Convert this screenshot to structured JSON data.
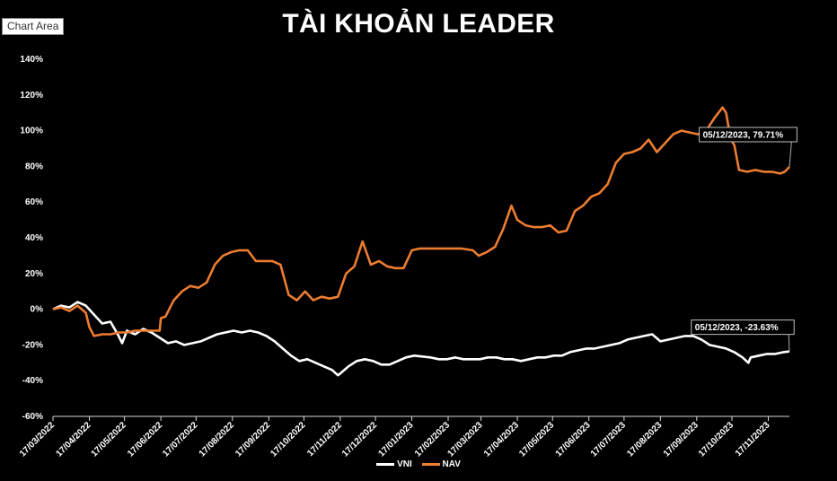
{
  "ui": {
    "chart_area_label": "Chart Area"
  },
  "chart_data": {
    "type": "line",
    "title": "TÀI KHOẢN LEADER",
    "xlabel": "",
    "ylabel": "",
    "ylim": [
      -60,
      140
    ],
    "ytick_step": 20,
    "y_unit": "%",
    "grid": false,
    "legend_position": "bottom",
    "x_tick_labels": [
      "17/03/2022",
      "17/04/2022",
      "17/05/2022",
      "17/06/2022",
      "17/07/2022",
      "17/08/2022",
      "17/09/2022",
      "17/10/2022",
      "17/11/2022",
      "17/12/2022",
      "17/01/2023",
      "17/02/2023",
      "17/03/2023",
      "17/04/2023",
      "17/05/2023",
      "17/06/2023",
      "17/07/2023",
      "17/08/2023",
      "17/09/2023",
      "17/10/2023",
      "17/11/2023"
    ],
    "x_range": [
      "17/03/2022",
      "05/12/2023"
    ],
    "series": [
      {
        "name": "VNI",
        "color": "#ffffff",
        "points": [
          [
            "17/03/2022",
            0
          ],
          [
            "24/03/2022",
            2
          ],
          [
            "31/03/2022",
            1
          ],
          [
            "07/04/2022",
            4
          ],
          [
            "14/04/2022",
            2
          ],
          [
            "21/04/2022",
            -3
          ],
          [
            "28/04/2022",
            -8
          ],
          [
            "05/05/2022",
            -7
          ],
          [
            "12/05/2022",
            -15
          ],
          [
            "15/05/2022",
            -19
          ],
          [
            "19/05/2022",
            -12
          ],
          [
            "26/05/2022",
            -14
          ],
          [
            "02/06/2022",
            -11
          ],
          [
            "09/06/2022",
            -13
          ],
          [
            "16/06/2022",
            -16
          ],
          [
            "23/06/2022",
            -19
          ],
          [
            "30/06/2022",
            -18
          ],
          [
            "07/07/2022",
            -20
          ],
          [
            "14/07/2022",
            -19
          ],
          [
            "21/07/2022",
            -18
          ],
          [
            "28/07/2022",
            -16
          ],
          [
            "04/08/2022",
            -14
          ],
          [
            "11/08/2022",
            -13
          ],
          [
            "18/08/2022",
            -12
          ],
          [
            "25/08/2022",
            -13
          ],
          [
            "01/09/2022",
            -12
          ],
          [
            "08/09/2022",
            -13
          ],
          [
            "15/09/2022",
            -15
          ],
          [
            "22/09/2022",
            -18
          ],
          [
            "29/09/2022",
            -22
          ],
          [
            "06/10/2022",
            -26
          ],
          [
            "13/10/2022",
            -29
          ],
          [
            "20/10/2022",
            -28
          ],
          [
            "27/10/2022",
            -30
          ],
          [
            "03/11/2022",
            -32
          ],
          [
            "10/11/2022",
            -34
          ],
          [
            "15/11/2022",
            -37
          ],
          [
            "17/11/2022",
            -36
          ],
          [
            "24/11/2022",
            -32
          ],
          [
            "01/12/2022",
            -29
          ],
          [
            "08/12/2022",
            -28
          ],
          [
            "15/12/2022",
            -29
          ],
          [
            "22/12/2022",
            -31
          ],
          [
            "29/12/2022",
            -31
          ],
          [
            "05/01/2023",
            -29
          ],
          [
            "12/01/2023",
            -27
          ],
          [
            "19/01/2023",
            -26
          ],
          [
            "02/02/2023",
            -27
          ],
          [
            "09/02/2023",
            -28
          ],
          [
            "16/02/2023",
            -28
          ],
          [
            "23/02/2023",
            -27
          ],
          [
            "02/03/2023",
            -28
          ],
          [
            "09/03/2023",
            -28
          ],
          [
            "16/03/2023",
            -28
          ],
          [
            "23/03/2023",
            -27
          ],
          [
            "30/03/2023",
            -27
          ],
          [
            "06/04/2023",
            -28
          ],
          [
            "13/04/2023",
            -28
          ],
          [
            "20/04/2023",
            -29
          ],
          [
            "27/04/2023",
            -28
          ],
          [
            "04/05/2023",
            -27
          ],
          [
            "11/05/2023",
            -27
          ],
          [
            "18/05/2023",
            -26
          ],
          [
            "25/05/2023",
            -26
          ],
          [
            "01/06/2023",
            -24
          ],
          [
            "08/06/2023",
            -23
          ],
          [
            "15/06/2023",
            -22
          ],
          [
            "22/06/2023",
            -22
          ],
          [
            "29/06/2023",
            -21
          ],
          [
            "06/07/2023",
            -20
          ],
          [
            "13/07/2023",
            -19
          ],
          [
            "20/07/2023",
            -17
          ],
          [
            "27/07/2023",
            -16
          ],
          [
            "03/08/2023",
            -15
          ],
          [
            "10/08/2023",
            -14
          ],
          [
            "17/08/2023",
            -18
          ],
          [
            "24/08/2023",
            -17
          ],
          [
            "31/08/2023",
            -16
          ],
          [
            "07/09/2023",
            -15
          ],
          [
            "14/09/2023",
            -15
          ],
          [
            "21/09/2023",
            -17
          ],
          [
            "28/09/2023",
            -20
          ],
          [
            "05/10/2023",
            -21
          ],
          [
            "12/10/2023",
            -22
          ],
          [
            "19/10/2023",
            -24
          ],
          [
            "26/10/2023",
            -27
          ],
          [
            "31/10/2023",
            -30
          ],
          [
            "02/11/2023",
            -27
          ],
          [
            "09/11/2023",
            -26
          ],
          [
            "16/11/2023",
            -25
          ],
          [
            "23/11/2023",
            -25
          ],
          [
            "30/11/2023",
            -24
          ],
          [
            "05/12/2023",
            -23.63
          ]
        ]
      },
      {
        "name": "NAV",
        "color": "#ed7d31",
        "points": [
          [
            "17/03/2022",
            0
          ],
          [
            "24/03/2022",
            1
          ],
          [
            "31/03/2022",
            -1
          ],
          [
            "07/04/2022",
            2
          ],
          [
            "14/04/2022",
            -2
          ],
          [
            "17/04/2022",
            -10
          ],
          [
            "21/04/2022",
            -15
          ],
          [
            "28/04/2022",
            -14
          ],
          [
            "05/05/2022",
            -14
          ],
          [
            "12/05/2022",
            -13
          ],
          [
            "19/05/2022",
            -13
          ],
          [
            "26/05/2022",
            -12
          ],
          [
            "02/06/2022",
            -12
          ],
          [
            "09/06/2022",
            -12
          ],
          [
            "16/06/2022",
            -12
          ],
          [
            "17/06/2022",
            -5
          ],
          [
            "21/06/2022",
            -4
          ],
          [
            "28/06/2022",
            5
          ],
          [
            "05/07/2022",
            10
          ],
          [
            "12/07/2022",
            13
          ],
          [
            "19/07/2022",
            12
          ],
          [
            "26/07/2022",
            15
          ],
          [
            "02/08/2022",
            25
          ],
          [
            "09/08/2022",
            30
          ],
          [
            "16/08/2022",
            32
          ],
          [
            "23/08/2022",
            33
          ],
          [
            "30/08/2022",
            33
          ],
          [
            "06/09/2022",
            27
          ],
          [
            "13/09/2022",
            27
          ],
          [
            "20/09/2022",
            27
          ],
          [
            "27/09/2022",
            25
          ],
          [
            "04/10/2022",
            8
          ],
          [
            "11/10/2022",
            5
          ],
          [
            "18/10/2022",
            10
          ],
          [
            "25/10/2022",
            5
          ],
          [
            "01/11/2022",
            7
          ],
          [
            "08/11/2022",
            6
          ],
          [
            "15/11/2022",
            7
          ],
          [
            "22/11/2022",
            20
          ],
          [
            "29/11/2022",
            24
          ],
          [
            "06/12/2022",
            38
          ],
          [
            "13/12/2022",
            25
          ],
          [
            "20/12/2022",
            27
          ],
          [
            "27/12/2022",
            24
          ],
          [
            "03/01/2023",
            23
          ],
          [
            "10/01/2023",
            23
          ],
          [
            "17/01/2023",
            33
          ],
          [
            "24/01/2023",
            34
          ],
          [
            "31/01/2023",
            34
          ],
          [
            "14/02/2023",
            34
          ],
          [
            "28/02/2023",
            34
          ],
          [
            "10/03/2023",
            33
          ],
          [
            "15/03/2023",
            30
          ],
          [
            "22/03/2023",
            32
          ],
          [
            "29/03/2023",
            35
          ],
          [
            "05/04/2023",
            45
          ],
          [
            "12/04/2023",
            58
          ],
          [
            "17/04/2023",
            50
          ],
          [
            "24/04/2023",
            47
          ],
          [
            "01/05/2023",
            46
          ],
          [
            "08/05/2023",
            46
          ],
          [
            "15/05/2023",
            47
          ],
          [
            "22/05/2023",
            43
          ],
          [
            "29/05/2023",
            44
          ],
          [
            "05/06/2023",
            55
          ],
          [
            "12/06/2023",
            58
          ],
          [
            "19/06/2023",
            63
          ],
          [
            "26/06/2023",
            65
          ],
          [
            "03/07/2023",
            70
          ],
          [
            "10/07/2023",
            82
          ],
          [
            "17/07/2023",
            87
          ],
          [
            "24/07/2023",
            88
          ],
          [
            "31/07/2023",
            90
          ],
          [
            "07/08/2023",
            95
          ],
          [
            "14/08/2023",
            88
          ],
          [
            "21/08/2023",
            93
          ],
          [
            "28/08/2023",
            98
          ],
          [
            "04/09/2023",
            100
          ],
          [
            "11/09/2023",
            99
          ],
          [
            "18/09/2023",
            98
          ],
          [
            "25/09/2023",
            100
          ],
          [
            "02/10/2023",
            107
          ],
          [
            "09/10/2023",
            113
          ],
          [
            "12/10/2023",
            110
          ],
          [
            "16/10/2023",
            95
          ],
          [
            "19/10/2023",
            92
          ],
          [
            "23/10/2023",
            78
          ],
          [
            "30/10/2023",
            77
          ],
          [
            "06/11/2023",
            78
          ],
          [
            "13/11/2023",
            77
          ],
          [
            "20/11/2023",
            77
          ],
          [
            "27/11/2023",
            76
          ],
          [
            "01/12/2023",
            77
          ],
          [
            "05/12/2023",
            79.71
          ]
        ]
      }
    ],
    "annotations": [
      {
        "series": "NAV",
        "date": "05/12/2023",
        "value": 79.71,
        "label": "05/12/2023, 79.71%"
      },
      {
        "series": "VNI",
        "date": "05/12/2023",
        "value": -23.63,
        "label": "05/12/2023, -23.63%"
      }
    ]
  }
}
